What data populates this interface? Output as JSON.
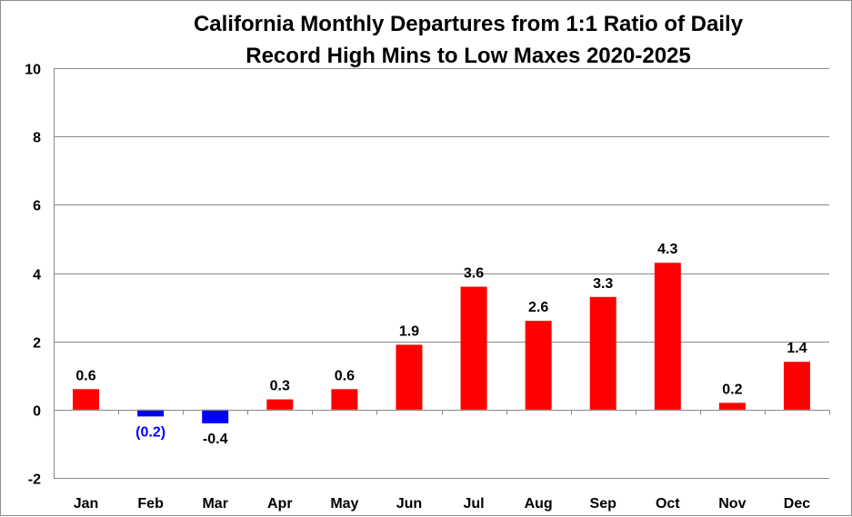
{
  "chart_data": {
    "type": "bar",
    "title_lines": [
      "California Monthly Departures from 1:1 Ratio of Daily",
      "Record High Mins to Low Maxes 2020-2025"
    ],
    "xlabel": "",
    "ylabel": "",
    "categories": [
      "Jan",
      "Feb",
      "Mar",
      "Apr",
      "May",
      "Jun",
      "Jul",
      "Aug",
      "Sep",
      "Oct",
      "Nov",
      "Dec"
    ],
    "values": [
      0.6,
      -0.2,
      -0.4,
      0.3,
      0.6,
      1.9,
      3.6,
      2.6,
      3.3,
      4.3,
      0.2,
      1.4
    ],
    "data_labels": [
      "0.6",
      "(0.2)",
      "-0.4",
      "0.3",
      "0.6",
      "1.9",
      "3.6",
      "2.6",
      "3.3",
      "4.3",
      "0.2",
      "1.4"
    ],
    "ylim": [
      -2,
      10
    ],
    "yticks": [
      -2,
      0,
      2,
      4,
      6,
      8,
      10
    ],
    "ytick_labels": [
      "-2",
      "0",
      "2",
      "4",
      "6",
      "8",
      "10"
    ],
    "grid": true,
    "legend": "none",
    "colors": {
      "positive": "#ff0000",
      "negative": "#0000ff",
      "label_default": "#000000",
      "label_feb": "#0000ff"
    }
  }
}
